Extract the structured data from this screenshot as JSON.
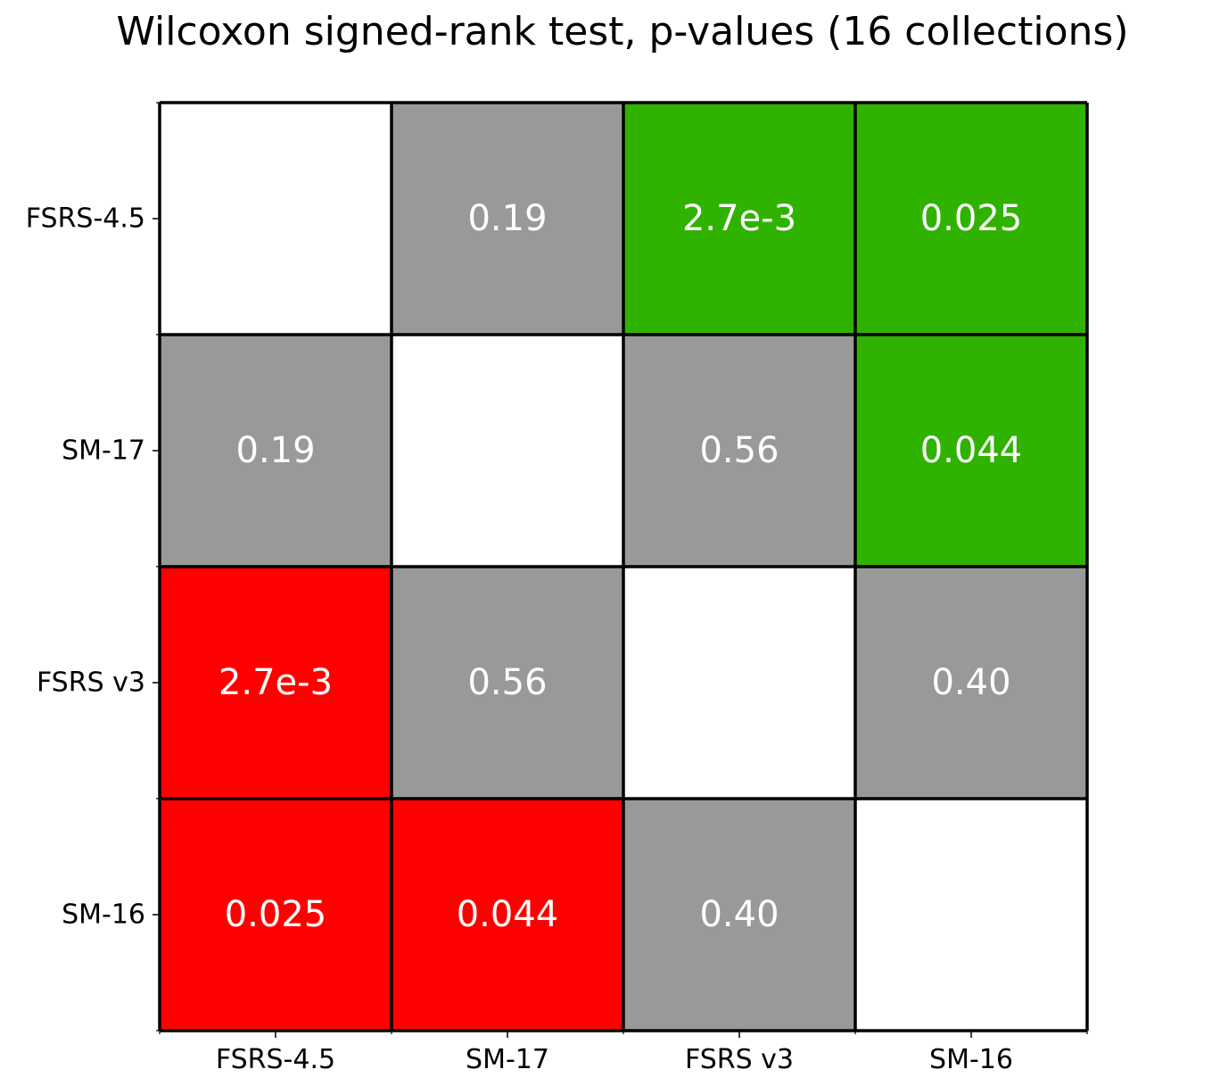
{
  "chart_data": {
    "type": "heatmap",
    "title": "Wilcoxon signed-rank test, p-values (16 collections)",
    "rows": [
      "FSRS-4.5",
      "SM-17",
      "FSRS v3",
      "SM-16"
    ],
    "columns": [
      "FSRS-4.5",
      "SM-17",
      "FSRS v3",
      "SM-16"
    ],
    "cells": [
      [
        {
          "label": "",
          "status": "none"
        },
        {
          "label": "0.19",
          "status": "not-significant"
        },
        {
          "label": "2.7e-3",
          "status": "better"
        },
        {
          "label": "0.025",
          "status": "better"
        }
      ],
      [
        {
          "label": "0.19",
          "status": "not-significant"
        },
        {
          "label": "",
          "status": "none"
        },
        {
          "label": "0.56",
          "status": "not-significant"
        },
        {
          "label": "0.044",
          "status": "better"
        }
      ],
      [
        {
          "label": "2.7e-3",
          "status": "worse"
        },
        {
          "label": "0.56",
          "status": "not-significant"
        },
        {
          "label": "",
          "status": "none"
        },
        {
          "label": "0.40",
          "status": "not-significant"
        }
      ],
      [
        {
          "label": "0.025",
          "status": "worse"
        },
        {
          "label": "0.044",
          "status": "worse"
        },
        {
          "label": "0.40",
          "status": "not-significant"
        },
        {
          "label": "",
          "status": "none"
        }
      ]
    ],
    "colors": {
      "better": "#30b200",
      "worse": "#ff0000",
      "not-significant": "#999a98",
      "none": "#ffffff"
    },
    "grid": true,
    "legend": "none"
  }
}
